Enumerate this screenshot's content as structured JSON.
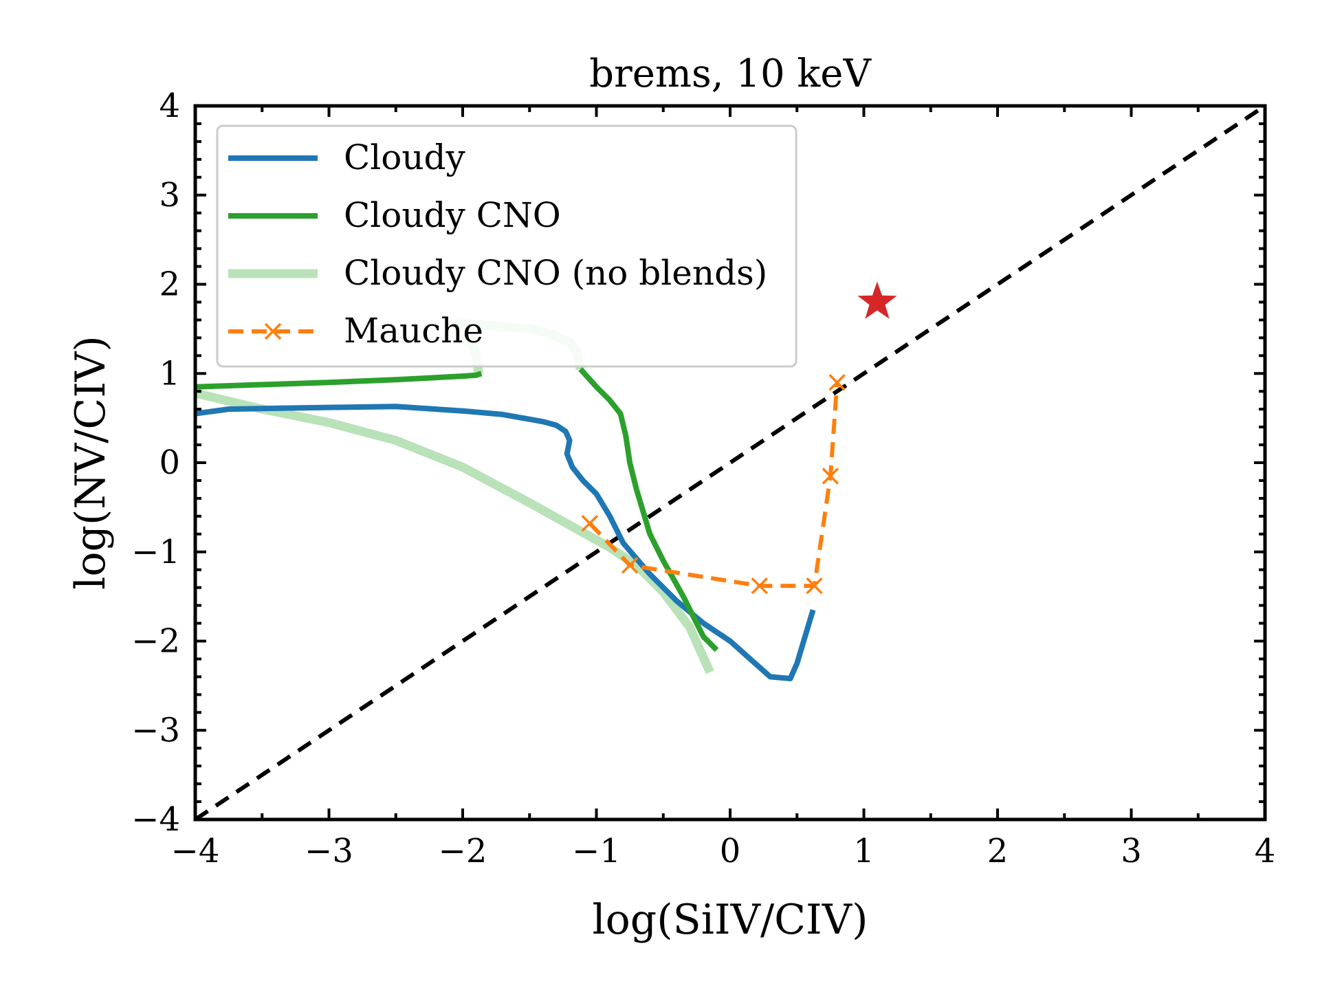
{
  "chart_data": {
    "type": "line",
    "title": "brems, 10 keV",
    "xlabel": "log(SiIV/CIV)",
    "ylabel": "log(NV/CIV)",
    "xlim": [
      -4,
      4
    ],
    "ylim": [
      -4,
      4
    ],
    "xticks": [
      -4,
      -3,
      -2,
      -1,
      0,
      1,
      2,
      3,
      4
    ],
    "yticks": [
      -4,
      -3,
      -2,
      -1,
      0,
      1,
      2,
      3,
      4
    ],
    "xtick_labels": [
      "−4",
      "−3",
      "−2",
      "−1",
      "0",
      "1",
      "2",
      "3",
      "4"
    ],
    "ytick_labels": [
      "−4",
      "−3",
      "−2",
      "−1",
      "0",
      "1",
      "2",
      "3",
      "4"
    ],
    "legend_placement": "upper-left",
    "grid": false,
    "series": [
      {
        "name": "Cloudy",
        "color": "#1f77b4",
        "style": "solid",
        "x": [
          -4.0,
          -3.75,
          -3.4,
          -3.0,
          -2.5,
          -2.0,
          -1.7,
          -1.4,
          -1.3,
          -1.23,
          -1.2,
          -1.22,
          -1.18,
          -1.1,
          -1.0,
          -0.9,
          -0.8,
          -0.6,
          -0.4,
          -0.2,
          0.0,
          0.15,
          0.3,
          0.45,
          0.5,
          0.55,
          0.62
        ],
        "y": [
          0.55,
          0.6,
          0.61,
          0.62,
          0.63,
          0.58,
          0.54,
          0.46,
          0.42,
          0.35,
          0.25,
          0.1,
          -0.05,
          -0.2,
          -0.35,
          -0.6,
          -0.9,
          -1.25,
          -1.55,
          -1.8,
          -2.0,
          -2.2,
          -2.4,
          -2.42,
          -2.25,
          -2.0,
          -1.65
        ]
      },
      {
        "name": "Cloudy CNO",
        "color": "#2ca02c",
        "style": "solid",
        "x": [
          -4.0,
          -3.0,
          -2.5,
          -2.0,
          -1.9,
          -1.86
        ],
        "y": [
          0.85,
          0.9,
          0.93,
          0.97,
          0.98,
          1.0
        ]
      },
      {
        "name": "Cloudy CNO",
        "color": "#2ca02c",
        "style": "solid",
        "x": [
          -1.12,
          -1.0,
          -0.9,
          -0.82,
          -0.78,
          -0.75,
          -0.7,
          -0.6,
          -0.5,
          -0.35,
          -0.2,
          -0.1
        ],
        "y": [
          1.05,
          0.85,
          0.7,
          0.55,
          0.3,
          0.0,
          -0.3,
          -0.8,
          -1.1,
          -1.5,
          -1.95,
          -2.1
        ]
      },
      {
        "name": "Cloudy CNO (no blends)",
        "color": "#b9e2b9",
        "style": "solid",
        "x": [
          -4.0,
          -3.5,
          -3.0,
          -2.5,
          -2.0,
          -1.5,
          -1.2,
          -0.9,
          -0.7,
          -0.5,
          -0.3,
          -0.15
        ],
        "y": [
          0.78,
          0.6,
          0.45,
          0.25,
          -0.05,
          -0.45,
          -0.7,
          -0.95,
          -1.15,
          -1.45,
          -1.85,
          -2.35
        ]
      },
      {
        "name": "Cloudy CNO (no blends)",
        "color": "#b9e2b9",
        "style": "solid",
        "x": [
          -2.05,
          -1.9,
          -1.5,
          -1.35,
          -1.2,
          -1.15,
          -1.12
        ],
        "y": [
          1.57,
          1.55,
          1.5,
          1.45,
          1.35,
          1.25,
          1.05
        ]
      },
      {
        "name": "Cloudy CNO (no blends)",
        "color": "#b9e2b9",
        "style": "solid",
        "x": [
          -2.0,
          -1.95,
          -1.92,
          -1.9,
          -1.88
        ],
        "y": [
          1.4,
          1.35,
          1.3,
          1.2,
          1.0
        ]
      },
      {
        "name": "Mauche",
        "color": "#ff7f0e",
        "style": "dashed",
        "markers": "x",
        "x": [
          -1.05,
          -0.75,
          0.22,
          0.63,
          0.75,
          0.8
        ],
        "y": [
          -0.68,
          -1.15,
          -1.38,
          -1.38,
          -0.15,
          0.9
        ]
      }
    ],
    "reference_line": {
      "x": [
        -4,
        4
      ],
      "y": [
        -4,
        4
      ],
      "color": "#000000",
      "style": "dashed"
    },
    "star_marker": {
      "x": 1.1,
      "y": 1.8,
      "color": "#d62728"
    }
  }
}
